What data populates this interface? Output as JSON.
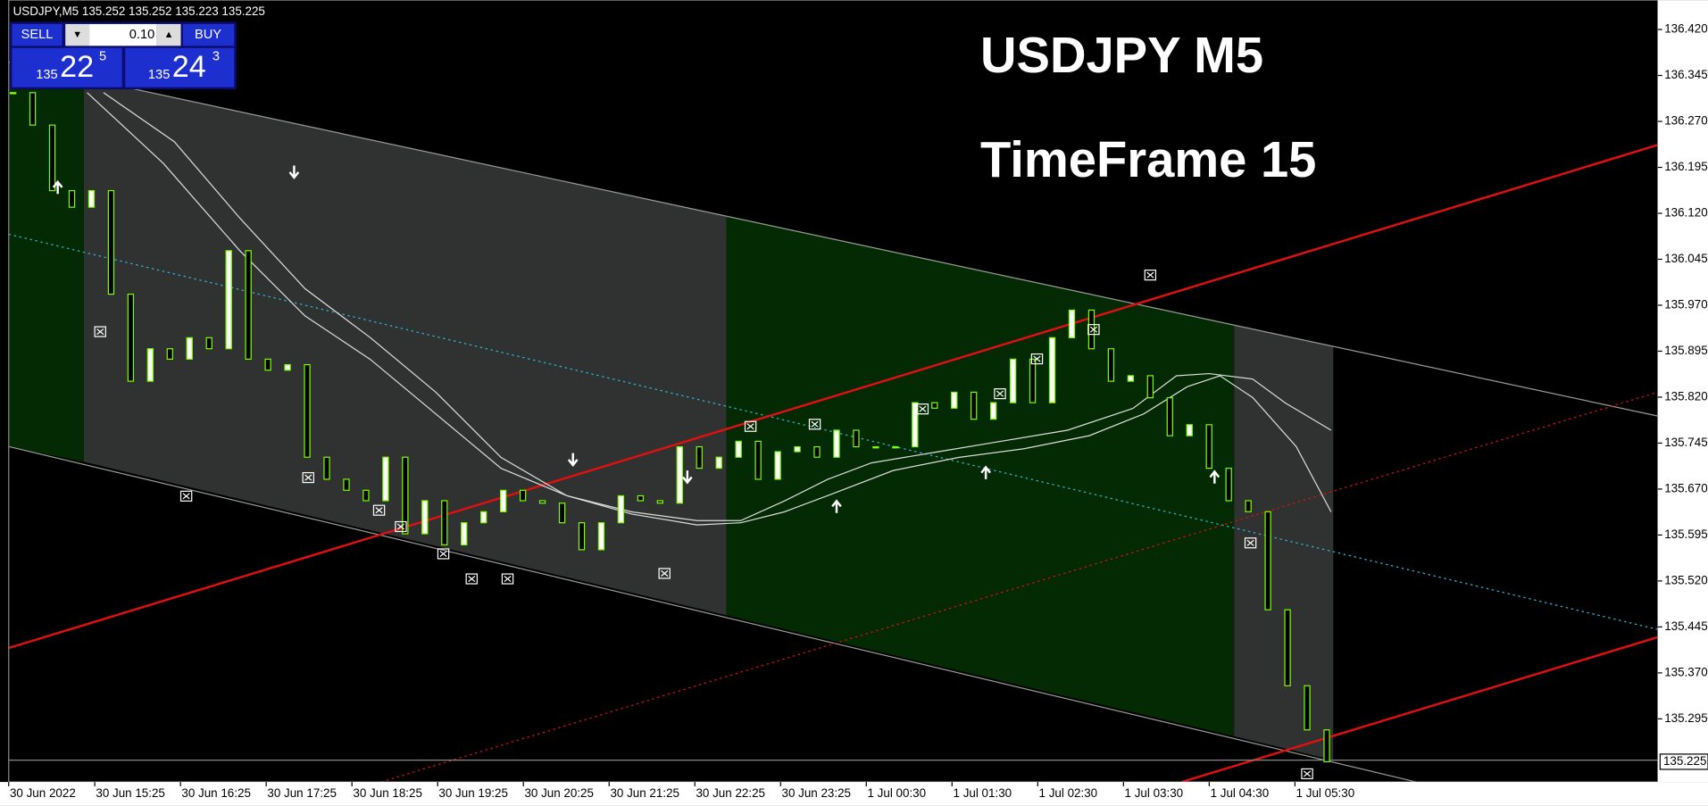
{
  "header": {
    "symbol_line": "USDJPY,M5  135.252 135.252 135.223 135.225"
  },
  "trade_panel": {
    "sell": "SELL",
    "buy": "BUY",
    "lot": "0.10",
    "sell_price": {
      "prefix": "135",
      "big": "22",
      "small": "5"
    },
    "buy_price": {
      "prefix": "135",
      "big": "24",
      "small": "3"
    }
  },
  "title": {
    "line1": "USDJPY M5",
    "line2": "TimeFrame 15"
  },
  "price_axis": {
    "ylim": [
      135.192,
      136.468
    ],
    "ticks": [
      {
        "value": 136.42,
        "label": "136.420"
      },
      {
        "value": 136.345,
        "label": "136.345"
      },
      {
        "value": 136.27,
        "label": "136.270"
      },
      {
        "value": 136.195,
        "label": "136.195"
      },
      {
        "value": 136.12,
        "label": "136.120"
      },
      {
        "value": 136.045,
        "label": "136.045"
      },
      {
        "value": 135.97,
        "label": "135.970"
      },
      {
        "value": 135.895,
        "label": "135.895"
      },
      {
        "value": 135.82,
        "label": "135.820"
      },
      {
        "value": 135.745,
        "label": "135.745"
      },
      {
        "value": 135.67,
        "label": "135.670"
      },
      {
        "value": 135.595,
        "label": "135.595"
      },
      {
        "value": 135.52,
        "label": "135.520"
      },
      {
        "value": 135.445,
        "label": "135.445"
      },
      {
        "value": 135.37,
        "label": "135.370"
      },
      {
        "value": 135.295,
        "label": "135.295"
      }
    ],
    "current": {
      "value": 135.225,
      "label": "135.225"
    }
  },
  "time_axis": {
    "labels": [
      "30 Jun 2022",
      "30 Jun 15:25",
      "30 Jun 16:25",
      "30 Jun 17:25",
      "30 Jun 18:25",
      "30 Jun 19:25",
      "30 Jun 20:25",
      "30 Jun 21:25",
      "30 Jun 22:25",
      "30 Jun 23:25",
      "1 Jul 00:30",
      "1 Jul 01:30",
      "1 Jul 02:30",
      "1 Jul 03:30",
      "1 Jul 04:30",
      "1 Jul 05:30"
    ]
  },
  "candles": {
    "closes": [
      136.317,
      136.264,
      136.157,
      136.13,
      136.157,
      135.988,
      135.846,
      135.899,
      135.882,
      135.917,
      135.899,
      136.059,
      135.882,
      135.864,
      135.873,
      135.722,
      135.686,
      135.668,
      135.651,
      135.722,
      135.597,
      135.651,
      135.579,
      135.615,
      135.633,
      135.668,
      135.651,
      135.647,
      135.615,
      135.571,
      135.615,
      135.659,
      135.651,
      135.647,
      135.739,
      135.704,
      135.722,
      135.748,
      135.686,
      135.731,
      135.739,
      135.722,
      135.766,
      135.739,
      135.739,
      135.739,
      135.811,
      135.802,
      135.828,
      135.784,
      135.811,
      135.882,
      135.811,
      135.917,
      135.962,
      135.899,
      135.846,
      135.855,
      135.819,
      135.757,
      135.775,
      135.704,
      135.651,
      135.633,
      135.473,
      135.349,
      135.277,
      135.225
    ]
  }
}
